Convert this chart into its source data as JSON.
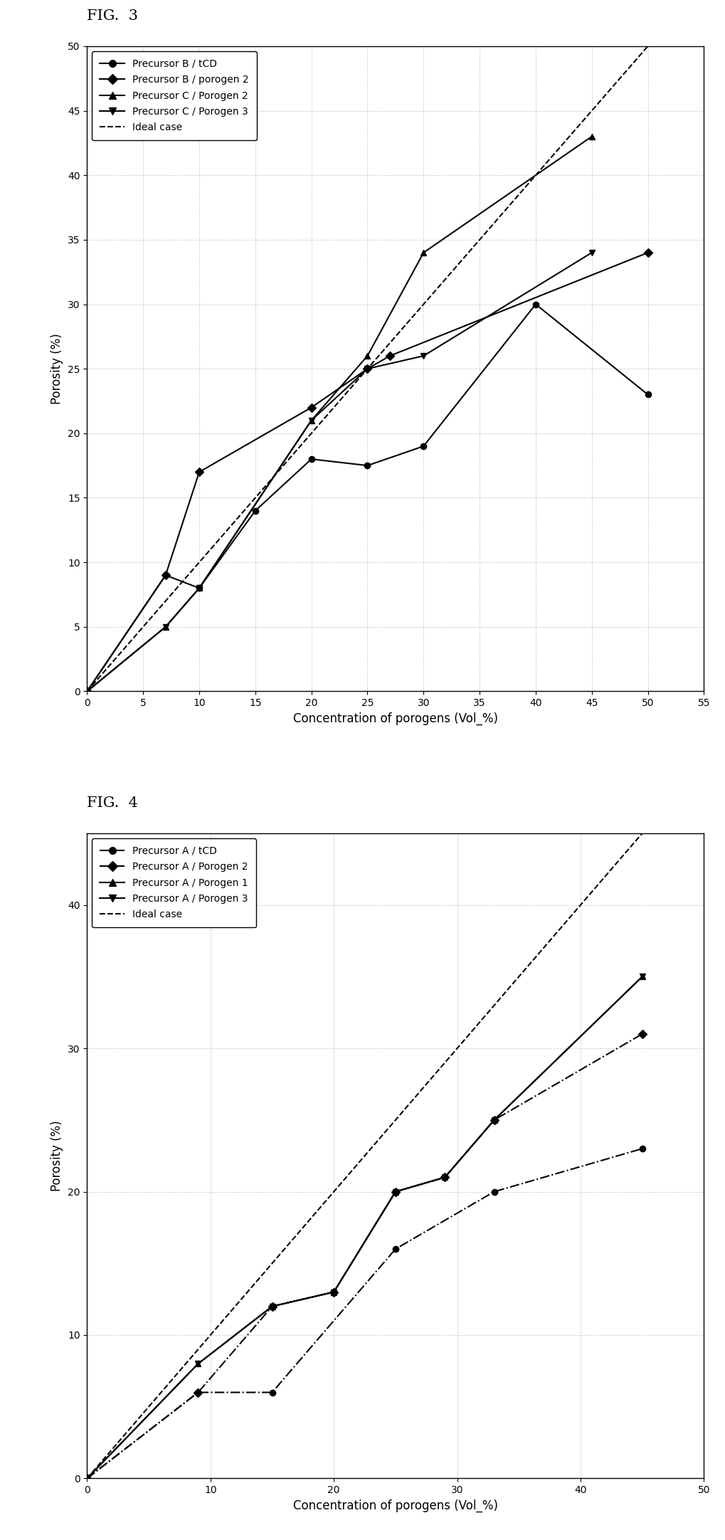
{
  "fig3": {
    "title": "FIG.  3",
    "xlabel": "Concentration of porogens (Vol_%)",
    "ylabel": "Porosity (%)",
    "xlim": [
      0,
      55
    ],
    "ylim": [
      0,
      50
    ],
    "xticks": [
      0,
      5,
      10,
      15,
      20,
      25,
      30,
      35,
      40,
      45,
      50,
      55
    ],
    "yticks": [
      0,
      5,
      10,
      15,
      20,
      25,
      30,
      35,
      40,
      45,
      50
    ],
    "series": [
      {
        "label": "Precursor B / tCD",
        "marker": "o",
        "linestyle": "-",
        "x": [
          0,
          7,
          10,
          15,
          20,
          25,
          30,
          40,
          50
        ],
        "y": [
          0,
          9,
          8,
          14,
          18,
          17.5,
          19,
          30,
          23
        ]
      },
      {
        "label": "Precursor B / porogen 2",
        "marker": "D",
        "linestyle": "-",
        "x": [
          0,
          7,
          10,
          20,
          25,
          27,
          50
        ],
        "y": [
          0,
          9,
          17,
          22,
          25,
          26,
          34
        ]
      },
      {
        "label": "Precursor C / Porogen 2",
        "marker": "^",
        "linestyle": "-",
        "x": [
          0,
          7,
          10,
          20,
          25,
          30,
          45
        ],
        "y": [
          0,
          5,
          8,
          21,
          26,
          34,
          43
        ]
      },
      {
        "label": "Precursor C / Porogen 3",
        "marker": "v",
        "linestyle": "-",
        "x": [
          0,
          7,
          10,
          20,
          25,
          30,
          45
        ],
        "y": [
          0,
          5,
          8,
          21,
          25,
          26,
          34
        ]
      },
      {
        "label": "Ideal case",
        "marker": null,
        "linestyle": "--",
        "x": [
          0,
          55
        ],
        "y": [
          0,
          55
        ]
      }
    ]
  },
  "fig4": {
    "title": "FIG.  4",
    "xlabel": "Concentration of porogens (Vol_%)",
    "ylabel": "Porosity (%)",
    "xlim": [
      0,
      50
    ],
    "ylim": [
      0,
      45
    ],
    "xticks": [
      0,
      10,
      20,
      30,
      40,
      50
    ],
    "yticks": [
      0,
      10,
      20,
      30,
      40
    ],
    "series": [
      {
        "label": "Precursor A / tCD",
        "marker": "o",
        "linestyle": "-.",
        "x": [
          0,
          9,
          15,
          25,
          33,
          45
        ],
        "y": [
          0,
          6,
          6,
          16,
          20,
          23
        ]
      },
      {
        "label": "Precursor A / Porogen 2",
        "marker": "D",
        "linestyle": "-.",
        "x": [
          0,
          9,
          15,
          20,
          25,
          29,
          33,
          45
        ],
        "y": [
          0,
          6,
          12,
          13,
          20,
          21,
          25,
          31
        ]
      },
      {
        "label": "Precursor A / Porogen 1",
        "marker": "^",
        "linestyle": "-",
        "x": [
          0,
          9,
          15,
          20,
          25,
          29,
          33,
          45
        ],
        "y": [
          0,
          8,
          12,
          13,
          20,
          21,
          25,
          35
        ]
      },
      {
        "label": "Precursor A / Porogen 3",
        "marker": "v",
        "linestyle": "-",
        "x": [
          0,
          9,
          15,
          20,
          25,
          29,
          33,
          45
        ],
        "y": [
          0,
          8,
          12,
          13,
          20,
          21,
          25,
          35
        ]
      },
      {
        "label": "Ideal case",
        "marker": null,
        "linestyle": "--",
        "x": [
          0,
          50
        ],
        "y": [
          0,
          50
        ]
      }
    ]
  }
}
